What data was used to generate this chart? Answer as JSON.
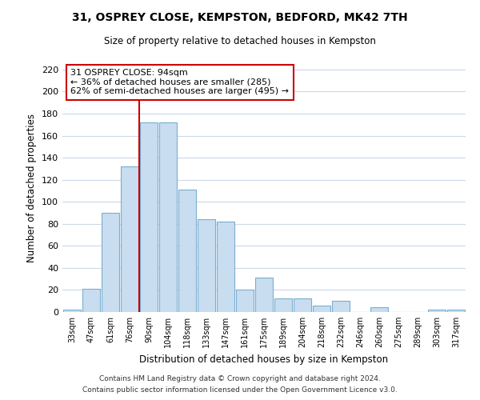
{
  "title": "31, OSPREY CLOSE, KEMPSTON, BEDFORD, MK42 7TH",
  "subtitle": "Size of property relative to detached houses in Kempston",
  "xlabel": "Distribution of detached houses by size in Kempston",
  "ylabel": "Number of detached properties",
  "bar_labels": [
    "33sqm",
    "47sqm",
    "61sqm",
    "76sqm",
    "90sqm",
    "104sqm",
    "118sqm",
    "133sqm",
    "147sqm",
    "161sqm",
    "175sqm",
    "189sqm",
    "204sqm",
    "218sqm",
    "232sqm",
    "246sqm",
    "260sqm",
    "275sqm",
    "289sqm",
    "303sqm",
    "317sqm"
  ],
  "bar_heights": [
    2,
    21,
    90,
    132,
    172,
    172,
    111,
    84,
    82,
    20,
    31,
    12,
    12,
    6,
    10,
    0,
    4,
    0,
    0,
    2,
    2
  ],
  "bar_color": "#c8ddf0",
  "bar_edge_color": "#7aaed0",
  "vline_x_index": 4,
  "vline_color": "#cc0000",
  "annotation_title": "31 OSPREY CLOSE: 94sqm",
  "annotation_line1": "← 36% of detached houses are smaller (285)",
  "annotation_line2": "62% of semi-detached houses are larger (495) →",
  "annotation_box_color": "#ffffff",
  "annotation_box_edge": "#cc0000",
  "ylim": [
    0,
    225
  ],
  "yticks": [
    0,
    20,
    40,
    60,
    80,
    100,
    120,
    140,
    160,
    180,
    200,
    220
  ],
  "footer1": "Contains HM Land Registry data © Crown copyright and database right 2024.",
  "footer2": "Contains public sector information licensed under the Open Government Licence v3.0.",
  "background_color": "#ffffff",
  "grid_color": "#ccd9e8"
}
